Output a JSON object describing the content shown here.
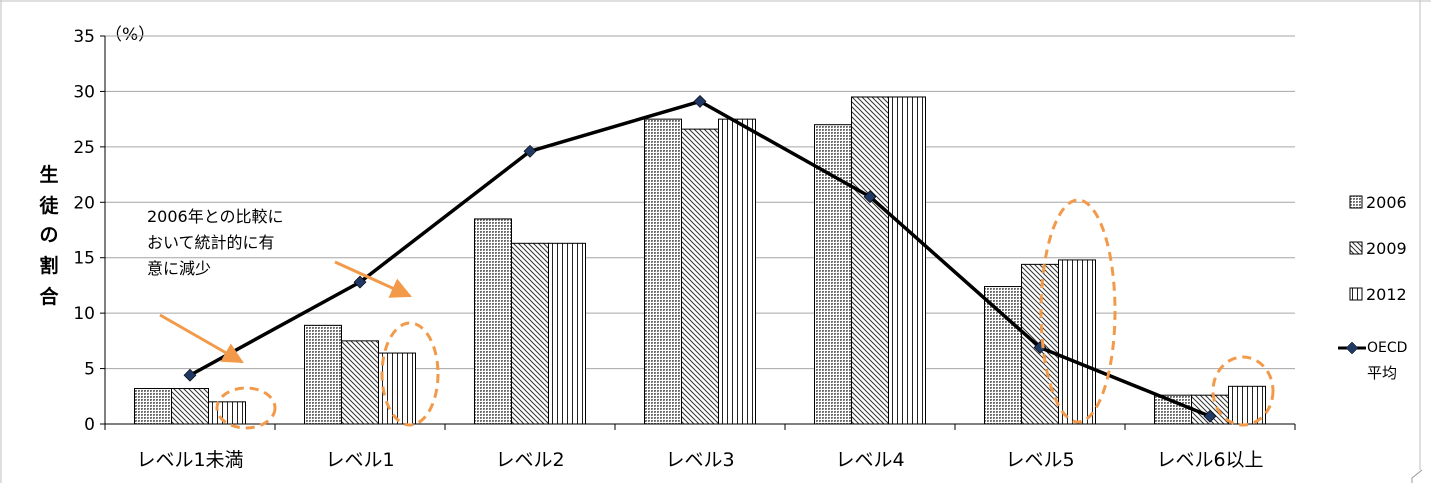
{
  "chart_data": {
    "type": "bar",
    "categories": [
      "レベル1未満",
      "レベル1",
      "レベル2",
      "レベル3",
      "レベル4",
      "レベル5",
      "レベル6以上"
    ],
    "series": [
      {
        "name": "2006",
        "values": [
          3.2,
          8.9,
          18.5,
          27.5,
          27.0,
          12.4,
          2.6
        ]
      },
      {
        "name": "2009",
        "values": [
          3.2,
          7.5,
          16.3,
          26.6,
          29.5,
          14.4,
          2.6
        ]
      },
      {
        "name": "2012",
        "values": [
          2.0,
          6.4,
          16.3,
          27.5,
          29.5,
          14.8,
          3.4
        ]
      }
    ],
    "line_series": {
      "name_lines": [
        "OECD",
        "平均"
      ],
      "values": [
        4.4,
        12.8,
        24.6,
        29.1,
        20.5,
        6.9,
        0.7
      ]
    },
    "ylabel_chars": [
      "生",
      "徒",
      "の",
      "割",
      "合"
    ],
    "yunit": "（%）",
    "ylim": [
      0,
      35
    ],
    "yticks": [
      0,
      5,
      10,
      15,
      20,
      25,
      30,
      35
    ],
    "grid": true,
    "legend_position": "right",
    "annotation_lines": [
      "2006年との比較に",
      "おいて統計的に有",
      "意に減少"
    ],
    "colors": {
      "annotation": "#f29a4a",
      "line": "#000000",
      "marker": "#1f3864",
      "grid": "#a6a6a6",
      "bar_2006": "#7f7f7f"
    }
  }
}
